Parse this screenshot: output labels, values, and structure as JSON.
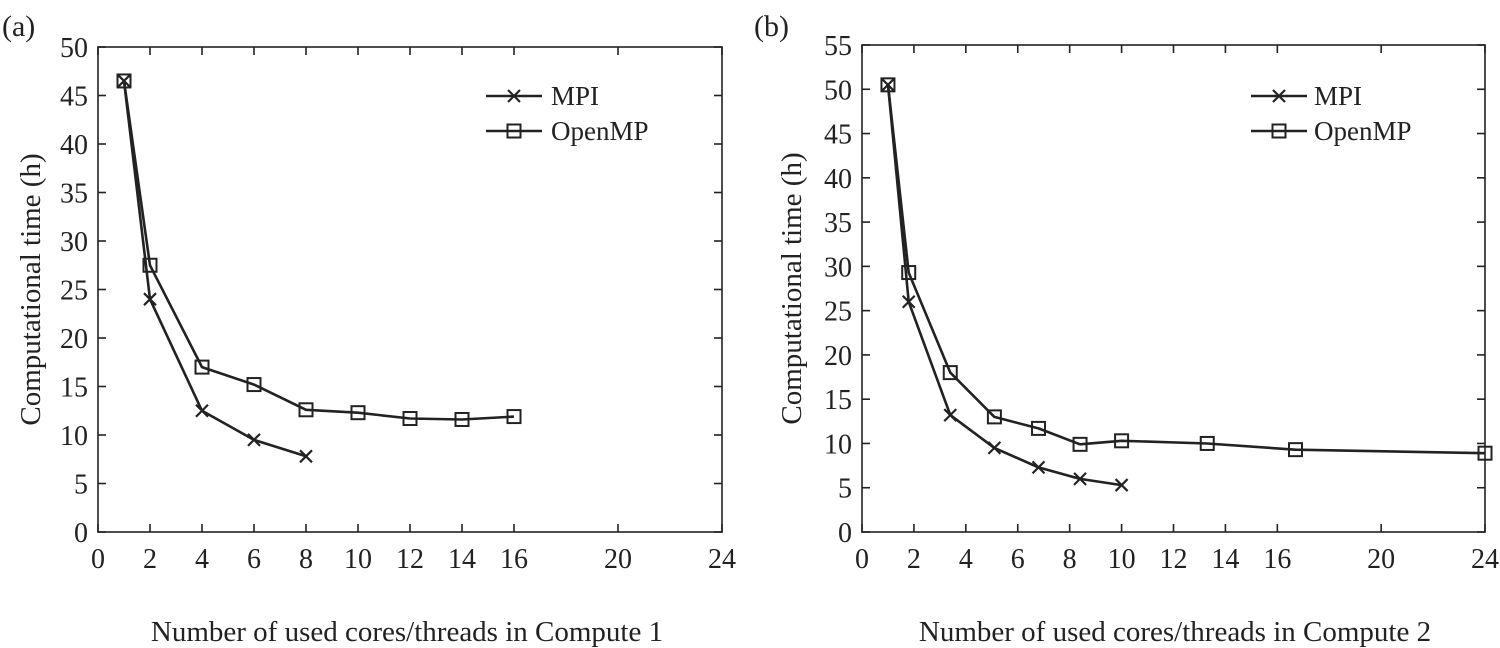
{
  "chart_data": [
    {
      "type": "line",
      "panel_label": "(a)",
      "title": "",
      "xlabel": "Number of used cores/threads in Compute 1",
      "ylabel": "Computational time (h)",
      "xlim": [
        0,
        24
      ],
      "ylim": [
        0,
        50
      ],
      "xticks": [
        0,
        2,
        4,
        6,
        8,
        10,
        12,
        14,
        16,
        20,
        24
      ],
      "yticks": [
        0,
        5,
        10,
        15,
        20,
        25,
        30,
        35,
        40,
        45,
        50
      ],
      "grid": false,
      "legend_position": "top-right",
      "series": [
        {
          "name": "MPI",
          "marker": "x",
          "x": [
            1,
            2,
            4,
            6,
            8
          ],
          "y": [
            46.5,
            24.0,
            12.5,
            9.5,
            7.8
          ]
        },
        {
          "name": "OpenMP",
          "marker": "square",
          "x": [
            1,
            2,
            4,
            6,
            8,
            10,
            12,
            14,
            16
          ],
          "y": [
            46.5,
            27.5,
            17.0,
            15.2,
            12.6,
            12.3,
            11.7,
            11.6,
            11.9
          ]
        }
      ]
    },
    {
      "type": "line",
      "panel_label": "(b)",
      "title": "",
      "xlabel": "Number of used cores/threads in Compute 2",
      "ylabel": "Computational time (h)",
      "xlim": [
        0,
        24
      ],
      "ylim": [
        0,
        55
      ],
      "xticks": [
        0,
        2,
        4,
        6,
        8,
        10,
        12,
        14,
        16,
        20,
        24
      ],
      "yticks": [
        0,
        5,
        10,
        15,
        20,
        25,
        30,
        35,
        40,
        45,
        50,
        55
      ],
      "grid": false,
      "legend_position": "top-right",
      "series": [
        {
          "name": "MPI",
          "marker": "x",
          "x": [
            1,
            1.8,
            3.4,
            5.1,
            6.8,
            8.4,
            10
          ],
          "y": [
            50.5,
            26.0,
            13.2,
            9.5,
            7.3,
            6.0,
            5.3
          ]
        },
        {
          "name": "OpenMP",
          "marker": "square",
          "x": [
            1,
            1.8,
            3.4,
            5.1,
            6.8,
            8.4,
            10,
            13.3,
            16.7,
            24
          ],
          "y": [
            50.5,
            29.3,
            18.0,
            13.0,
            11.7,
            9.9,
            10.3,
            10.0,
            9.3,
            8.9
          ]
        }
      ]
    }
  ]
}
